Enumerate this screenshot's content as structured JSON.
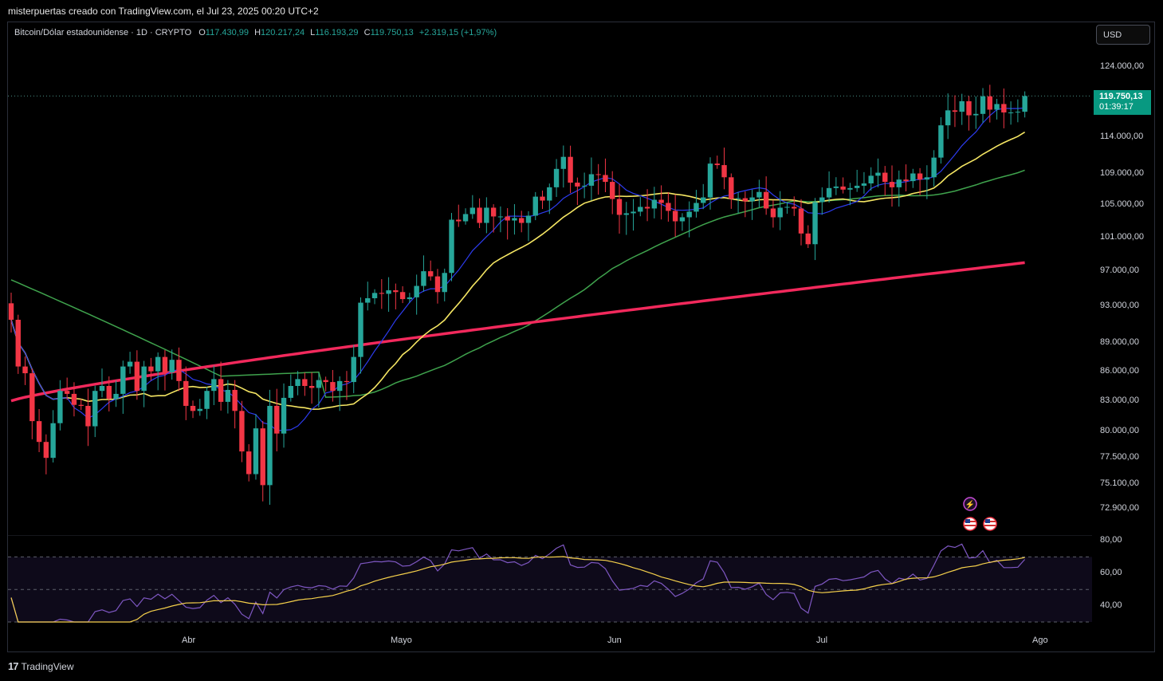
{
  "header": {
    "title": "misterpuertas creado con TradingView.com, el Jul 23, 2025 00:20 UTC+2"
  },
  "legend": {
    "symbol": "Bitcoin/Dólar estadounidense · 1D · CRYPTO",
    "open_label": "O",
    "open": "117.430,99",
    "high_label": "H",
    "high": "120.217,24",
    "low_label": "L",
    "low": "116.193,29",
    "close_label": "C",
    "close": "119.750,13",
    "change": "+2.319,15 (+1,97%)"
  },
  "currency": "USD",
  "last_price": {
    "price": "119.750,13",
    "countdown": "01:39:17"
  },
  "footer": {
    "brand": "TradingView"
  },
  "colors": {
    "up": "#26a69a",
    "down": "#f23645",
    "ma_fast": "#2d3cf0",
    "ma_mid": "#f5e663",
    "ma_slow": "#3fa34d",
    "ma_long": "#f2295c",
    "rsi": "#7e57c2",
    "rsi_ma": "#f5d04b"
  },
  "icons": [
    "lightning-event-icon",
    "us-flag-event-icon",
    "us-flag-event-icon"
  ],
  "chart_data": [
    {
      "type": "candlestick",
      "scale": "log",
      "y_ticks": [
        "124.000,00",
        "114.000,00",
        "109.000,00",
        "105.000,00",
        "101.000,00",
        "97.000,00",
        "93.000,00",
        "89.000,00",
        "86.000,00",
        "83.000,00",
        "80.000,00",
        "77.500,00",
        "75.100,00",
        "72.900,00"
      ],
      "y_tick_values": [
        124000,
        114000,
        109000,
        105000,
        101000,
        97000,
        93000,
        89000,
        86000,
        83000,
        80000,
        77500,
        75100,
        72900
      ],
      "x_ticks": [
        "Abr",
        "Mayo",
        "Jun",
        "Jul",
        "Ago"
      ],
      "candles_start": "Mar 2",
      "closes": [
        91500,
        86500,
        85800,
        81000,
        79000,
        77500,
        80800,
        84000,
        83700,
        82600,
        82500,
        80500,
        84000,
        84500,
        83200,
        83700,
        86500,
        87000,
        84000,
        86500,
        86000,
        87500,
        85900,
        87200,
        85000,
        82500,
        82000,
        82200,
        84000,
        85200,
        82900,
        84100,
        82000,
        78100,
        76000,
        80300,
        75000,
        82500,
        79800,
        83300,
        84500,
        85200,
        84500,
        84300,
        85100,
        84900,
        84000,
        85000,
        84900,
        87500,
        93400,
        93900,
        94500,
        94400,
        94800,
        94600,
        93800,
        94000,
        95300,
        97000,
        96400,
        94600,
        96800,
        103200,
        103000,
        103900,
        104700,
        102800,
        104700,
        103600,
        103600,
        103100,
        103400,
        102800,
        103700,
        106100,
        105600,
        107300,
        109700,
        111300,
        107900,
        107400,
        107500,
        109000,
        108900,
        108000,
        105800,
        103800,
        104000,
        104200,
        104800,
        104600,
        105700,
        105300,
        104300,
        103000,
        103500,
        104200,
        105300,
        106000,
        110400,
        110200,
        108600,
        105800,
        105900,
        105500,
        106000,
        106700,
        104600,
        103500,
        104700,
        104800,
        104600,
        101500,
        100200,
        105400,
        106000,
        107200,
        107400,
        107000,
        107200,
        107500,
        107800,
        108800,
        109200,
        108000,
        107300,
        108300,
        108100,
        109100,
        108300,
        108600,
        111200,
        115600,
        117700,
        117500,
        119000,
        117000,
        117200,
        119700,
        117800,
        118600,
        117400,
        117400,
        117500,
        119750
      ],
      "ma_fast_end": 117300,
      "ma_mid_end": 115700,
      "ma_slow_end": 109800,
      "ma_long_end": 98000
    },
    {
      "type": "line",
      "name": "RSI",
      "y_ticks": [
        "80,00",
        "60,00",
        "40,00"
      ],
      "y_tick_values": [
        80,
        60,
        40
      ],
      "bands": [
        70,
        50,
        30
      ]
    }
  ]
}
